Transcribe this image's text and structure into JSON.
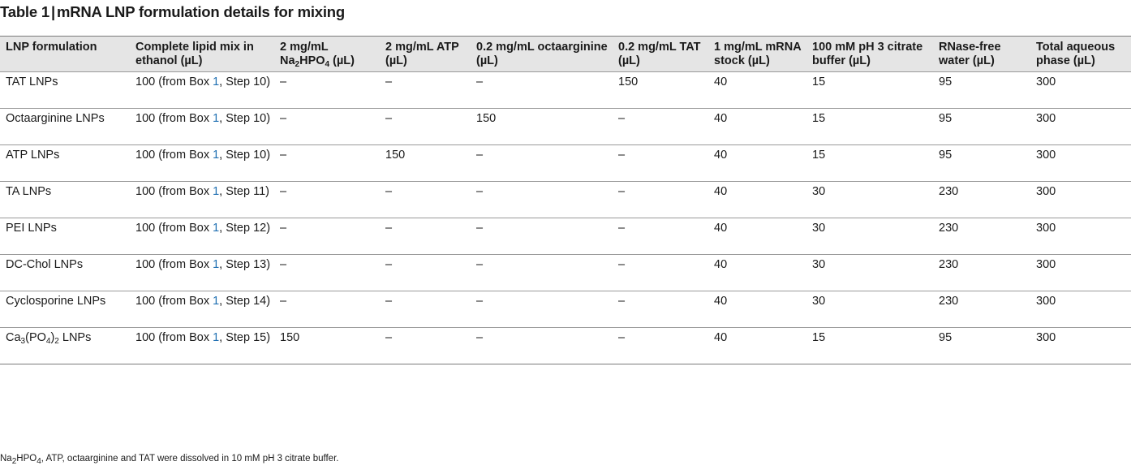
{
  "title": {
    "table_label": "Table 1",
    "separator": "|",
    "caption": "mRNA LNP formulation details for mixing"
  },
  "columns": [
    {
      "text": "LNP formulation"
    },
    {
      "text": "Complete lipid mix in ethanol (µL)"
    },
    {
      "pre": "2 mg/mL Na",
      "sub1": "2",
      "mid": "HPO",
      "sub2": "4",
      "post": " (µL)"
    },
    {
      "text": "2 mg/mL ATP (µL)"
    },
    {
      "text": "0.2 mg/mL octaarginine (µL)"
    },
    {
      "text": "0.2 mg/mL TAT (µL)"
    },
    {
      "text": "1 mg/mL mRNA stock (µL)"
    },
    {
      "text": "100 mM pH 3 citrate buffer (µL)"
    },
    {
      "text": "RNase-free water (µL)"
    },
    {
      "text": "Total aqueous phase (µL)"
    }
  ],
  "rows": [
    {
      "name": "TAT LNPs",
      "lipid_pre": "100 (from Box ",
      "box": "1",
      "lipid_post": ", Step 10)",
      "na2hpo4": "–",
      "atp": "–",
      "octaarginine": "–",
      "tat": "150",
      "mrna": "40",
      "citrate": "15",
      "water": "95",
      "total": "300"
    },
    {
      "name": "Octaarginine LNPs",
      "lipid_pre": "100 (from Box ",
      "box": "1",
      "lipid_post": ", Step 10)",
      "na2hpo4": "–",
      "atp": "–",
      "octaarginine": "150",
      "tat": "–",
      "mrna": "40",
      "citrate": "15",
      "water": "95",
      "total": "300"
    },
    {
      "name": "ATP LNPs",
      "lipid_pre": "100 (from Box ",
      "box": "1",
      "lipid_post": ", Step 10)",
      "na2hpo4": "–",
      "atp": "150",
      "octaarginine": "–",
      "tat": "–",
      "mrna": "40",
      "citrate": "15",
      "water": "95",
      "total": "300"
    },
    {
      "name": "TA LNPs",
      "lipid_pre": "100 (from Box ",
      "box": "1",
      "lipid_post": ", Step 11)",
      "na2hpo4": "–",
      "atp": "–",
      "octaarginine": "–",
      "tat": "–",
      "mrna": "40",
      "citrate": "30",
      "water": "230",
      "total": "300"
    },
    {
      "name": "PEI LNPs",
      "lipid_pre": "100 (from Box ",
      "box": "1",
      "lipid_post": ", Step 12)",
      "na2hpo4": "–",
      "atp": "–",
      "octaarginine": "–",
      "tat": "–",
      "mrna": "40",
      "citrate": "30",
      "water": "230",
      "total": "300"
    },
    {
      "name": "DC-Chol LNPs",
      "lipid_pre": "100 (from Box ",
      "box": "1",
      "lipid_post": ", Step 13)",
      "na2hpo4": "–",
      "atp": "–",
      "octaarginine": "–",
      "tat": "–",
      "mrna": "40",
      "citrate": "30",
      "water": "230",
      "total": "300"
    },
    {
      "name": "Cyclosporine LNPs",
      "lipid_pre": "100 (from Box ",
      "box": "1",
      "lipid_post": ", Step 14)",
      "na2hpo4": "–",
      "atp": "–",
      "octaarginine": "–",
      "tat": "–",
      "mrna": "40",
      "citrate": "30",
      "water": "230",
      "total": "300"
    },
    {
      "name_parts": {
        "a": "Ca",
        "s1": "3",
        "b": "(PO",
        "s2": "4",
        "c": ")",
        "s3": "2",
        "d": " LNPs"
      },
      "lipid_pre": "100 (from Box ",
      "box": "1",
      "lipid_post": ", Step 15)",
      "na2hpo4": "150",
      "atp": "–",
      "octaarginine": "–",
      "tat": "–",
      "mrna": "40",
      "citrate": "15",
      "water": "95",
      "total": "300"
    }
  ],
  "footnote": {
    "pre": "Na",
    "sub1": "2",
    "mid": "HPO",
    "sub2": "4",
    "post": ", ATP, octaarginine and TAT were dissolved in 10 mM pH 3 citrate buffer."
  }
}
